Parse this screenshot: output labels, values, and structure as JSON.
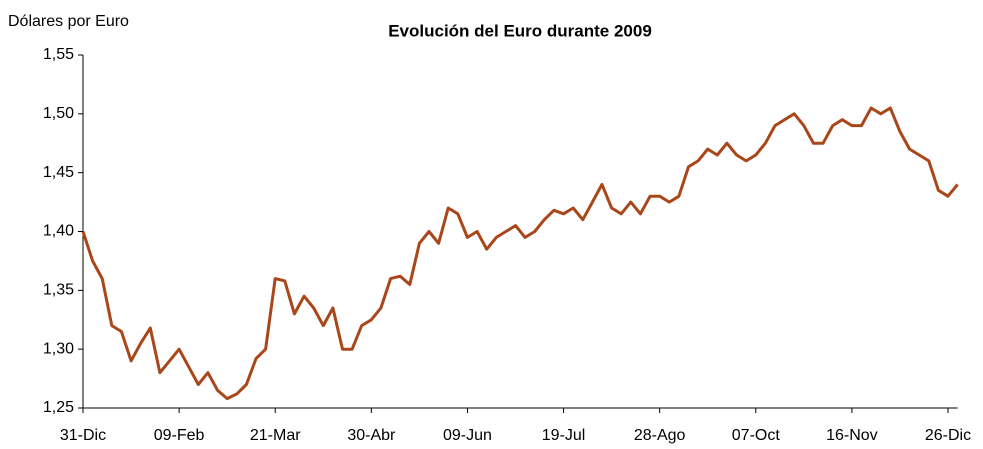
{
  "chart_data": {
    "type": "line",
    "title": "Evolución del Euro durante 2009",
    "y_axis_label": "Dólares por Euro",
    "categories": [
      "31-Dic",
      null,
      null,
      null,
      null,
      null,
      null,
      null,
      null,
      null,
      "09-Feb",
      null,
      null,
      null,
      null,
      null,
      null,
      null,
      null,
      null,
      "21-Mar",
      null,
      null,
      null,
      null,
      null,
      null,
      null,
      null,
      null,
      "30-Abr",
      null,
      null,
      null,
      null,
      null,
      null,
      null,
      null,
      null,
      "09-Jun",
      null,
      null,
      null,
      null,
      null,
      null,
      null,
      null,
      null,
      "19-Jul",
      null,
      null,
      null,
      null,
      null,
      null,
      null,
      null,
      null,
      "28-Ago",
      null,
      null,
      null,
      null,
      null,
      null,
      null,
      null,
      null,
      "07-Oct",
      null,
      null,
      null,
      null,
      null,
      null,
      null,
      null,
      null,
      "16-Nov",
      null,
      null,
      null,
      null,
      null,
      null,
      null,
      null,
      null,
      "26-Dic",
      null
    ],
    "series": [
      {
        "name": "Dólares por Euro",
        "color": "#a9471b",
        "values": [
          1.4,
          1.375,
          1.36,
          1.32,
          1.315,
          1.29,
          1.305,
          1.318,
          1.28,
          1.29,
          1.3,
          1.285,
          1.27,
          1.28,
          1.265,
          1.258,
          1.262,
          1.27,
          1.292,
          1.3,
          1.36,
          1.358,
          1.33,
          1.345,
          1.335,
          1.32,
          1.335,
          1.3,
          1.3,
          1.32,
          1.325,
          1.335,
          1.36,
          1.362,
          1.355,
          1.39,
          1.4,
          1.39,
          1.42,
          1.415,
          1.395,
          1.4,
          1.385,
          1.395,
          1.4,
          1.405,
          1.395,
          1.4,
          1.41,
          1.418,
          1.415,
          1.42,
          1.41,
          1.425,
          1.44,
          1.42,
          1.415,
          1.425,
          1.415,
          1.43,
          1.43,
          1.425,
          1.43,
          1.455,
          1.46,
          1.47,
          1.465,
          1.475,
          1.465,
          1.46,
          1.465,
          1.475,
          1.49,
          1.495,
          1.5,
          1.49,
          1.475,
          1.475,
          1.49,
          1.495,
          1.49,
          1.49,
          1.505,
          1.5,
          1.505,
          1.485,
          1.47,
          1.465,
          1.46,
          1.435,
          1.43,
          1.44
        ]
      }
    ],
    "ylim": [
      1.25,
      1.55
    ],
    "yticks": [
      {
        "value": 1.25,
        "label": "1,25"
      },
      {
        "value": 1.3,
        "label": "1,30"
      },
      {
        "value": 1.35,
        "label": "1,35"
      },
      {
        "value": 1.4,
        "label": "1,40"
      },
      {
        "value": 1.45,
        "label": "1,45"
      },
      {
        "value": 1.5,
        "label": "1,50"
      },
      {
        "value": 1.55,
        "label": "1,55"
      }
    ],
    "grid": false
  }
}
